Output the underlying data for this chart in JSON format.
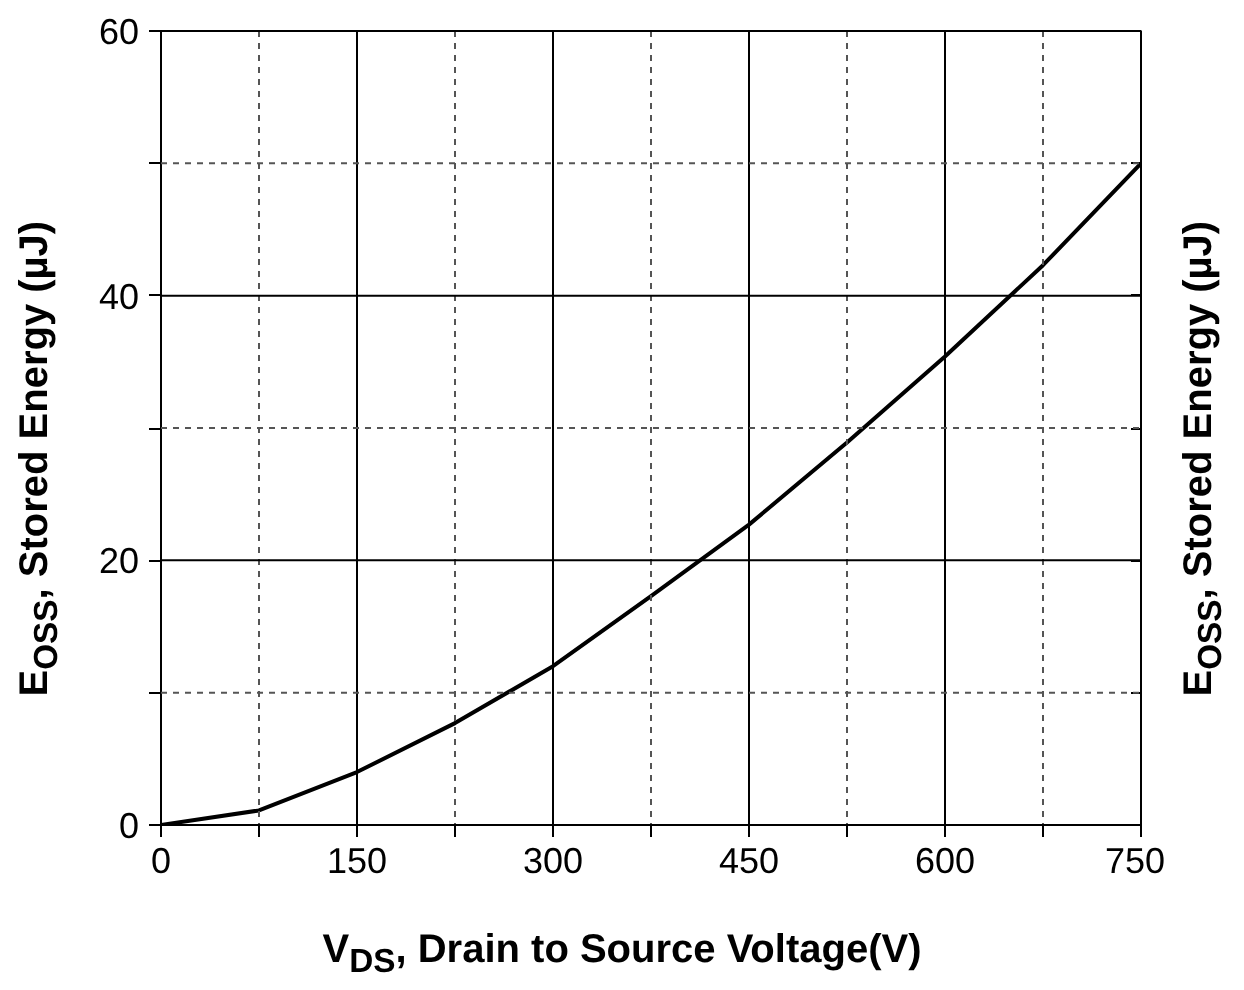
{
  "chart_data": {
    "type": "line",
    "xlabel": "V$_{DS}$, Drain to Source Voltage(V)",
    "ylabel": "E$_{OSS}$, Stored Energy (µJ)",
    "y2label": "E$_{OSS}$, Stored Energy (µJ)",
    "x": [
      0,
      75,
      150,
      225,
      300,
      375,
      450,
      525,
      600,
      675,
      750
    ],
    "series": [
      {
        "color": "#000000",
        "values": [
          0,
          1.1,
          4,
          7.7,
          12,
          17.3,
          22.7,
          28.9,
          35.4,
          42.3,
          50
        ]
      }
    ],
    "xlim": [
      0,
      750
    ],
    "ylim": [
      0,
      60
    ],
    "xticks": [
      0,
      {
        "value": 75,
        "label": null
      },
      150,
      {
        "value": 225,
        "label": null
      },
      300,
      {
        "value": 375,
        "label": null
      },
      450,
      {
        "value": 525,
        "label": null
      },
      600,
      {
        "value": 675,
        "label": null
      },
      750
    ],
    "yticks": [
      0,
      {
        "value": 10,
        "label": null
      },
      20,
      {
        "value": 30,
        "label": null
      },
      40,
      {
        "value": 50,
        "label": null
      },
      60
    ],
    "grid": true,
    "marker": "none",
    "line_style": "solid"
  }
}
